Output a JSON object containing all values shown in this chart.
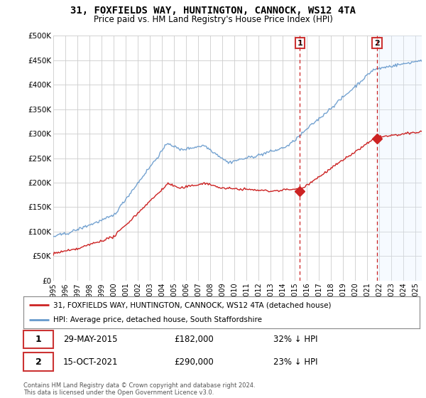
{
  "title": "31, FOXFIELDS WAY, HUNTINGTON, CANNOCK, WS12 4TA",
  "subtitle": "Price paid vs. HM Land Registry's House Price Index (HPI)",
  "background_color": "#ffffff",
  "plot_bg_color": "#ffffff",
  "hpi_color": "#6699cc",
  "price_color": "#cc2222",
  "vline_color": "#cc2222",
  "shade_color": "#ddeeff",
  "sale1_date_x": 2015.41,
  "sale1_price": 182000,
  "sale1_label": "1",
  "sale2_date_x": 2021.79,
  "sale2_price": 290000,
  "sale2_label": "2",
  "xmin": 1995.0,
  "xmax": 2025.5,
  "ymin": 0,
  "ymax": 500000,
  "yticks": [
    0,
    50000,
    100000,
    150000,
    200000,
    250000,
    300000,
    350000,
    400000,
    450000,
    500000
  ],
  "ytick_labels": [
    "£0",
    "£50K",
    "£100K",
    "£150K",
    "£200K",
    "£250K",
    "£300K",
    "£350K",
    "£400K",
    "£450K",
    "£500K"
  ],
  "legend_entry1": "31, FOXFIELDS WAY, HUNTINGTON, CANNOCK, WS12 4TA (detached house)",
  "legend_entry2": "HPI: Average price, detached house, South Staffordshire",
  "annotation1_date": "29-MAY-2015",
  "annotation1_price": "£182,000",
  "annotation1_hpi": "32% ↓ HPI",
  "annotation2_date": "15-OCT-2021",
  "annotation2_price": "£290,000",
  "annotation2_hpi": "23% ↓ HPI",
  "footer": "Contains HM Land Registry data © Crown copyright and database right 2024.\nThis data is licensed under the Open Government Licence v3.0."
}
